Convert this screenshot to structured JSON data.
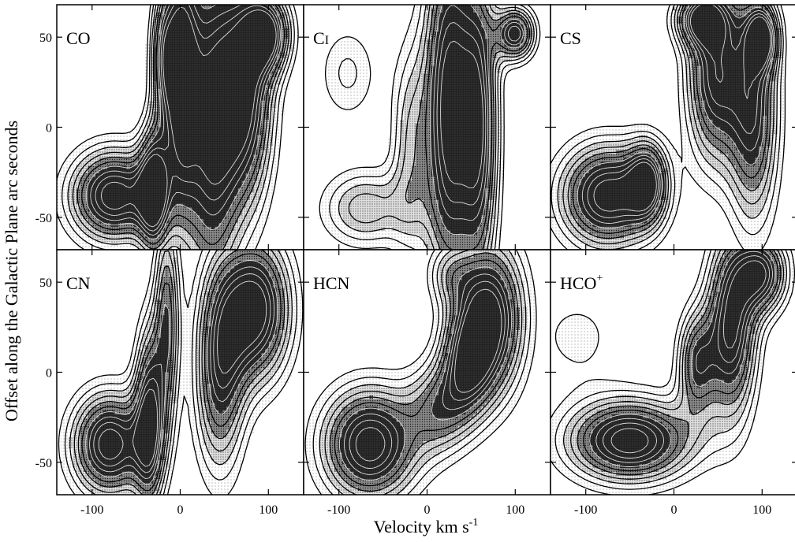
{
  "chart_data": {
    "type": "heatmap",
    "xlabel": "Velocity  km s",
    "xlabel_sup": "-1",
    "ylabel": "Offset along the Galactic Plane  arc seconds",
    "xlim": [
      -140,
      140
    ],
    "ylim": [
      -68,
      68
    ],
    "xticks": [
      -100,
      0,
      100
    ],
    "xtick_labels": [
      "-100",
      "0",
      "100"
    ],
    "yticks": [
      50,
      0,
      -50
    ],
    "ytick_labels": [
      "50",
      "0",
      "-50"
    ],
    "layout": "2 rows x 3 columns",
    "grid": false,
    "contour_color": "#000000",
    "panels": [
      {
        "name": "CO",
        "name_sup": "",
        "features": [
          {
            "vx": -75,
            "y": -38,
            "sx": 35,
            "sy": 18,
            "peak": 0.95
          },
          {
            "vx": -30,
            "y": -35,
            "sx": 12,
            "sy": 25,
            "peak": 0.8
          },
          {
            "vx": 0,
            "y": 30,
            "sx": 14,
            "sy": 50,
            "peak": 0.9
          },
          {
            "vx": 35,
            "y": 0,
            "sx": 22,
            "sy": 65,
            "peak": 0.85
          },
          {
            "vx": 75,
            "y": 20,
            "sx": 22,
            "sy": 45,
            "peak": 0.85
          },
          {
            "vx": 100,
            "y": 52,
            "sx": 18,
            "sy": 15,
            "peak": 0.75
          },
          {
            "vx": -20,
            "y": 40,
            "sx": 10,
            "sy": 25,
            "peak": 0.5
          }
        ]
      },
      {
        "name": "C",
        "name_sup": "I",
        "features": [
          {
            "vx": 25,
            "y": 10,
            "sx": 20,
            "sy": 70,
            "peak": 0.95
          },
          {
            "vx": 60,
            "y": 0,
            "sx": 15,
            "sy": 60,
            "peak": 0.75
          },
          {
            "vx": -70,
            "y": -45,
            "sx": 35,
            "sy": 15,
            "peak": 0.45
          },
          {
            "vx": -20,
            "y": -10,
            "sx": 15,
            "sy": 40,
            "peak": 0.35
          },
          {
            "vx": 100,
            "y": 52,
            "sx": 15,
            "sy": 10,
            "peak": 0.85
          },
          {
            "vx": -90,
            "y": 30,
            "sx": 25,
            "sy": 20,
            "peak": 0.25
          }
        ]
      },
      {
        "name": "CS",
        "name_sup": "",
        "features": [
          {
            "vx": -75,
            "y": -38,
            "sx": 38,
            "sy": 20,
            "peak": 0.95
          },
          {
            "vx": -30,
            "y": -30,
            "sx": 15,
            "sy": 15,
            "peak": 0.7
          },
          {
            "vx": 45,
            "y": 30,
            "sx": 22,
            "sy": 35,
            "peak": 0.8
          },
          {
            "vx": 90,
            "y": 10,
            "sx": 20,
            "sy": 45,
            "peak": 0.75
          },
          {
            "vx": 30,
            "y": 60,
            "sx": 20,
            "sy": 10,
            "peak": 0.7
          },
          {
            "vx": 100,
            "y": 50,
            "sx": 12,
            "sy": 12,
            "peak": 0.75
          }
        ]
      },
      {
        "name": "CN",
        "name_sup": "",
        "features": [
          {
            "vx": -80,
            "y": -40,
            "sx": 30,
            "sy": 20,
            "peak": 0.95
          },
          {
            "vx": -35,
            "y": -25,
            "sx": 12,
            "sy": 35,
            "peak": 0.8
          },
          {
            "vx": -15,
            "y": 30,
            "sx": 10,
            "sy": 40,
            "peak": 0.6
          },
          {
            "vx": 85,
            "y": 35,
            "sx": 28,
            "sy": 28,
            "peak": 0.95
          },
          {
            "vx": 45,
            "y": 0,
            "sx": 20,
            "sy": 40,
            "peak": 0.7
          }
        ]
      },
      {
        "name": "HCN",
        "name_sup": "",
        "features": [
          {
            "vx": -65,
            "y": -40,
            "sx": 38,
            "sy": 22,
            "peak": 0.95
          },
          {
            "vx": 70,
            "y": 30,
            "sx": 28,
            "sy": 30,
            "peak": 0.95
          },
          {
            "vx": 15,
            "y": -20,
            "sx": 25,
            "sy": 18,
            "peak": 0.5
          },
          {
            "vx": 45,
            "y": 5,
            "sx": 20,
            "sy": 20,
            "peak": 0.55
          },
          {
            "vx": 25,
            "y": 55,
            "sx": 18,
            "sy": 12,
            "peak": 0.3
          }
        ]
      },
      {
        "name": "HCO",
        "name_sup": "+",
        "features": [
          {
            "vx": -50,
            "y": -38,
            "sx": 50,
            "sy": 16,
            "peak": 0.95
          },
          {
            "vx": 65,
            "y": 25,
            "sx": 20,
            "sy": 35,
            "peak": 0.9
          },
          {
            "vx": 25,
            "y": 5,
            "sx": 15,
            "sy": 20,
            "peak": 0.6
          },
          {
            "vx": 100,
            "y": 55,
            "sx": 20,
            "sy": 15,
            "peak": 0.8
          },
          {
            "vx": -110,
            "y": 20,
            "sx": 40,
            "sy": 20,
            "peak": 0.18
          }
        ]
      }
    ],
    "contour_levels": [
      0.15,
      0.23,
      0.31,
      0.39,
      0.47,
      0.55,
      0.63,
      0.71,
      0.79,
      0.87
    ],
    "fill_levels": [
      {
        "min": 0.15,
        "color": "#ffffff",
        "stipple": "light"
      },
      {
        "min": 0.31,
        "color": "#cfcfcf",
        "stipple": "medium"
      },
      {
        "min": 0.47,
        "color": "#8a8a8a",
        "stipple": "heavy"
      },
      {
        "min": 0.63,
        "color": "#2a2a2a",
        "stipple": "dark"
      }
    ]
  }
}
